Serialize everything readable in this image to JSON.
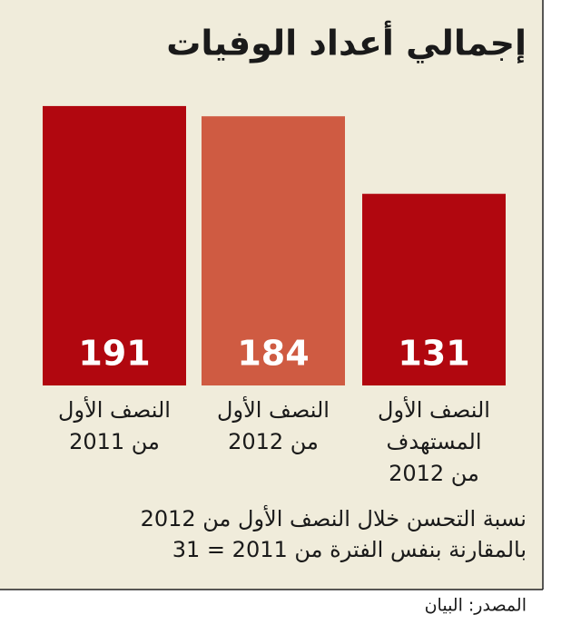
{
  "chart_data": {
    "type": "bar",
    "title": "إجمالي أعداد الوفيات",
    "categories": [
      [
        "النصف الأول",
        "من 2011"
      ],
      [
        "النصف الأول",
        "من 2012"
      ],
      [
        "النصف الأول",
        "المستهدف",
        "من 2012"
      ]
    ],
    "values": [
      191,
      184,
      131
    ],
    "colors": [
      "#b1070f",
      "#cf5b42",
      "#b1070f"
    ],
    "annotations": [
      "نسبة التحسن خلال النصف الأول من 2012",
      "بالمقارنة بنفس الفترة من 2011 = 31"
    ],
    "source": "المصدر: البيان"
  }
}
